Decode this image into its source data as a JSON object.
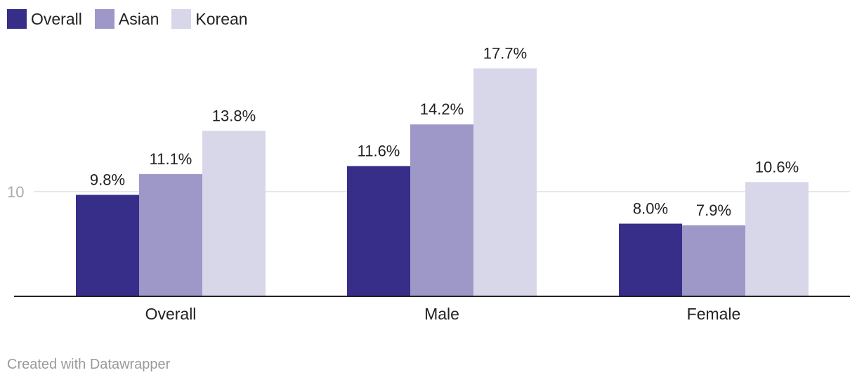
{
  "chart_data": {
    "type": "bar",
    "categories": [
      "Overall",
      "Male",
      "Female"
    ],
    "series": [
      {
        "name": "Overall",
        "color": "#372e89",
        "values": [
          9.8,
          11.6,
          8.0
        ],
        "labels": [
          "9.8%",
          "11.6%",
          "8.0%"
        ]
      },
      {
        "name": "Asian",
        "color": "#9d98c8",
        "values": [
          11.1,
          14.2,
          7.9
        ],
        "labels": [
          "11.1%",
          "14.2%",
          "7.9%"
        ]
      },
      {
        "name": "Korean",
        "color": "#d8d7ea",
        "values": [
          13.8,
          17.7,
          10.6
        ],
        "labels": [
          "13.8%",
          "17.7%",
          "10.6%"
        ]
      }
    ],
    "y_ticks": [
      10
    ],
    "y_tick_labels": [
      "10"
    ],
    "ylim": [
      3.46,
      20
    ],
    "legend_position": "top-left",
    "grid": true
  },
  "footer": {
    "credit": "Created with Datawrapper"
  }
}
